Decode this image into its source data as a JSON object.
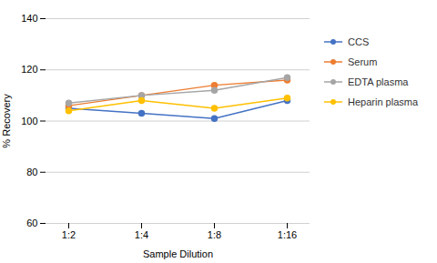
{
  "chart_data": {
    "type": "line",
    "xlabel": "Sample Dilution",
    "ylabel": "% Recovery",
    "categories": [
      "1:2",
      "1:4",
      "1:8",
      "1:16"
    ],
    "series": [
      {
        "name": "CCS",
        "color": "#4472C4",
        "marker": "circle",
        "values": [
          105,
          103,
          101,
          108
        ]
      },
      {
        "name": "Serum",
        "color": "#ED7D31",
        "marker": "circle",
        "values": [
          106,
          110,
          114,
          116
        ]
      },
      {
        "name": "EDTA plasma",
        "color": "#A5A5A5",
        "marker": "circle",
        "values": [
          107,
          110,
          112,
          117
        ]
      },
      {
        "name": "Heparin plasma",
        "color": "#FFC000",
        "marker": "circle",
        "values": [
          104,
          108,
          105,
          109
        ]
      }
    ],
    "ylim": [
      60,
      140
    ],
    "yticks": [
      60,
      80,
      100,
      120,
      140
    ],
    "grid": true,
    "legend": "right"
  }
}
